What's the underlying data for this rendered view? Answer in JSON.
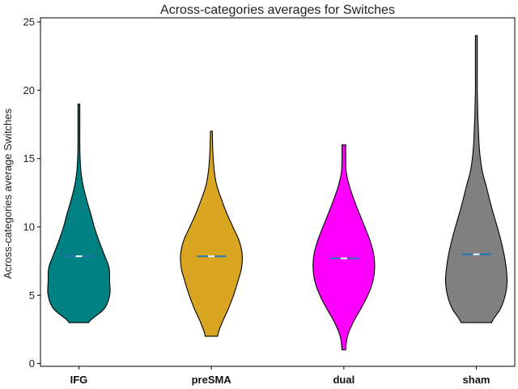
{
  "chart_data": {
    "type": "violin",
    "title": "Across-categories averages for Switches",
    "xlabel": "",
    "ylabel": "Across-categories average Switches",
    "ylim": [
      -0.2,
      25.3
    ],
    "yticks": [
      0,
      5,
      10,
      15,
      20,
      25
    ],
    "grid": false,
    "categories": [
      "IFG",
      "preSMA",
      "dual",
      "sham"
    ],
    "series": [
      {
        "category": "IFG",
        "color": "#008080",
        "min": 3,
        "max": 19,
        "mean": 7.85,
        "median": 7.85,
        "density_profile": [
          [
            3,
            0.32
          ],
          [
            4,
            0.82
          ],
          [
            5,
            1.0
          ],
          [
            6,
            1.0
          ],
          [
            7,
            0.98
          ],
          [
            8,
            0.82
          ],
          [
            9,
            0.65
          ],
          [
            10,
            0.5
          ],
          [
            11,
            0.38
          ],
          [
            12,
            0.25
          ],
          [
            13,
            0.14
          ],
          [
            14,
            0.07
          ],
          [
            15,
            0.04
          ],
          [
            16,
            0.03
          ],
          [
            17,
            0.03
          ],
          [
            18,
            0.03
          ],
          [
            19,
            0.03
          ]
        ]
      },
      {
        "category": "preSMA",
        "color": "#DAA520",
        "min": 2,
        "max": 17,
        "mean": 7.85,
        "median": 7.85,
        "density_profile": [
          [
            2,
            0.2
          ],
          [
            3,
            0.35
          ],
          [
            4,
            0.55
          ],
          [
            5,
            0.72
          ],
          [
            6,
            0.86
          ],
          [
            7,
            0.98
          ],
          [
            8,
            1.0
          ],
          [
            9,
            0.9
          ],
          [
            10,
            0.7
          ],
          [
            11,
            0.5
          ],
          [
            12,
            0.33
          ],
          [
            13,
            0.18
          ],
          [
            14,
            0.1
          ],
          [
            15,
            0.06
          ],
          [
            16,
            0.04
          ],
          [
            17,
            0.03
          ]
        ]
      },
      {
        "category": "dual",
        "color": "#FF00FF",
        "min": 1,
        "max": 16,
        "mean": 7.7,
        "median": 7.7,
        "density_profile": [
          [
            1,
            0.06
          ],
          [
            2,
            0.12
          ],
          [
            3,
            0.3
          ],
          [
            4,
            0.55
          ],
          [
            5,
            0.78
          ],
          [
            6,
            0.94
          ],
          [
            7,
            1.0
          ],
          [
            8,
            0.97
          ],
          [
            9,
            0.85
          ],
          [
            10,
            0.68
          ],
          [
            11,
            0.5
          ],
          [
            12,
            0.33
          ],
          [
            13,
            0.18
          ],
          [
            14,
            0.08
          ],
          [
            15,
            0.06
          ],
          [
            16,
            0.06
          ]
        ]
      },
      {
        "category": "sham",
        "color": "#808080",
        "min": 3,
        "max": 24,
        "mean": 8.0,
        "median": 8.0,
        "density_profile": [
          [
            3,
            0.5
          ],
          [
            4,
            0.78
          ],
          [
            5,
            0.94
          ],
          [
            6,
            1.0
          ],
          [
            7,
            0.97
          ],
          [
            8,
            0.9
          ],
          [
            9,
            0.8
          ],
          [
            10,
            0.68
          ],
          [
            11,
            0.55
          ],
          [
            12,
            0.43
          ],
          [
            13,
            0.32
          ],
          [
            14,
            0.2
          ],
          [
            15,
            0.13
          ],
          [
            16,
            0.09
          ],
          [
            17,
            0.07
          ],
          [
            18,
            0.05
          ],
          [
            19,
            0.04
          ],
          [
            20,
            0.03
          ],
          [
            21,
            0.03
          ],
          [
            22,
            0.03
          ],
          [
            23,
            0.03
          ],
          [
            24,
            0.03
          ]
        ]
      }
    ],
    "mean_marker_color": "#ffffff",
    "median_marker_color": "#1f77b4"
  }
}
